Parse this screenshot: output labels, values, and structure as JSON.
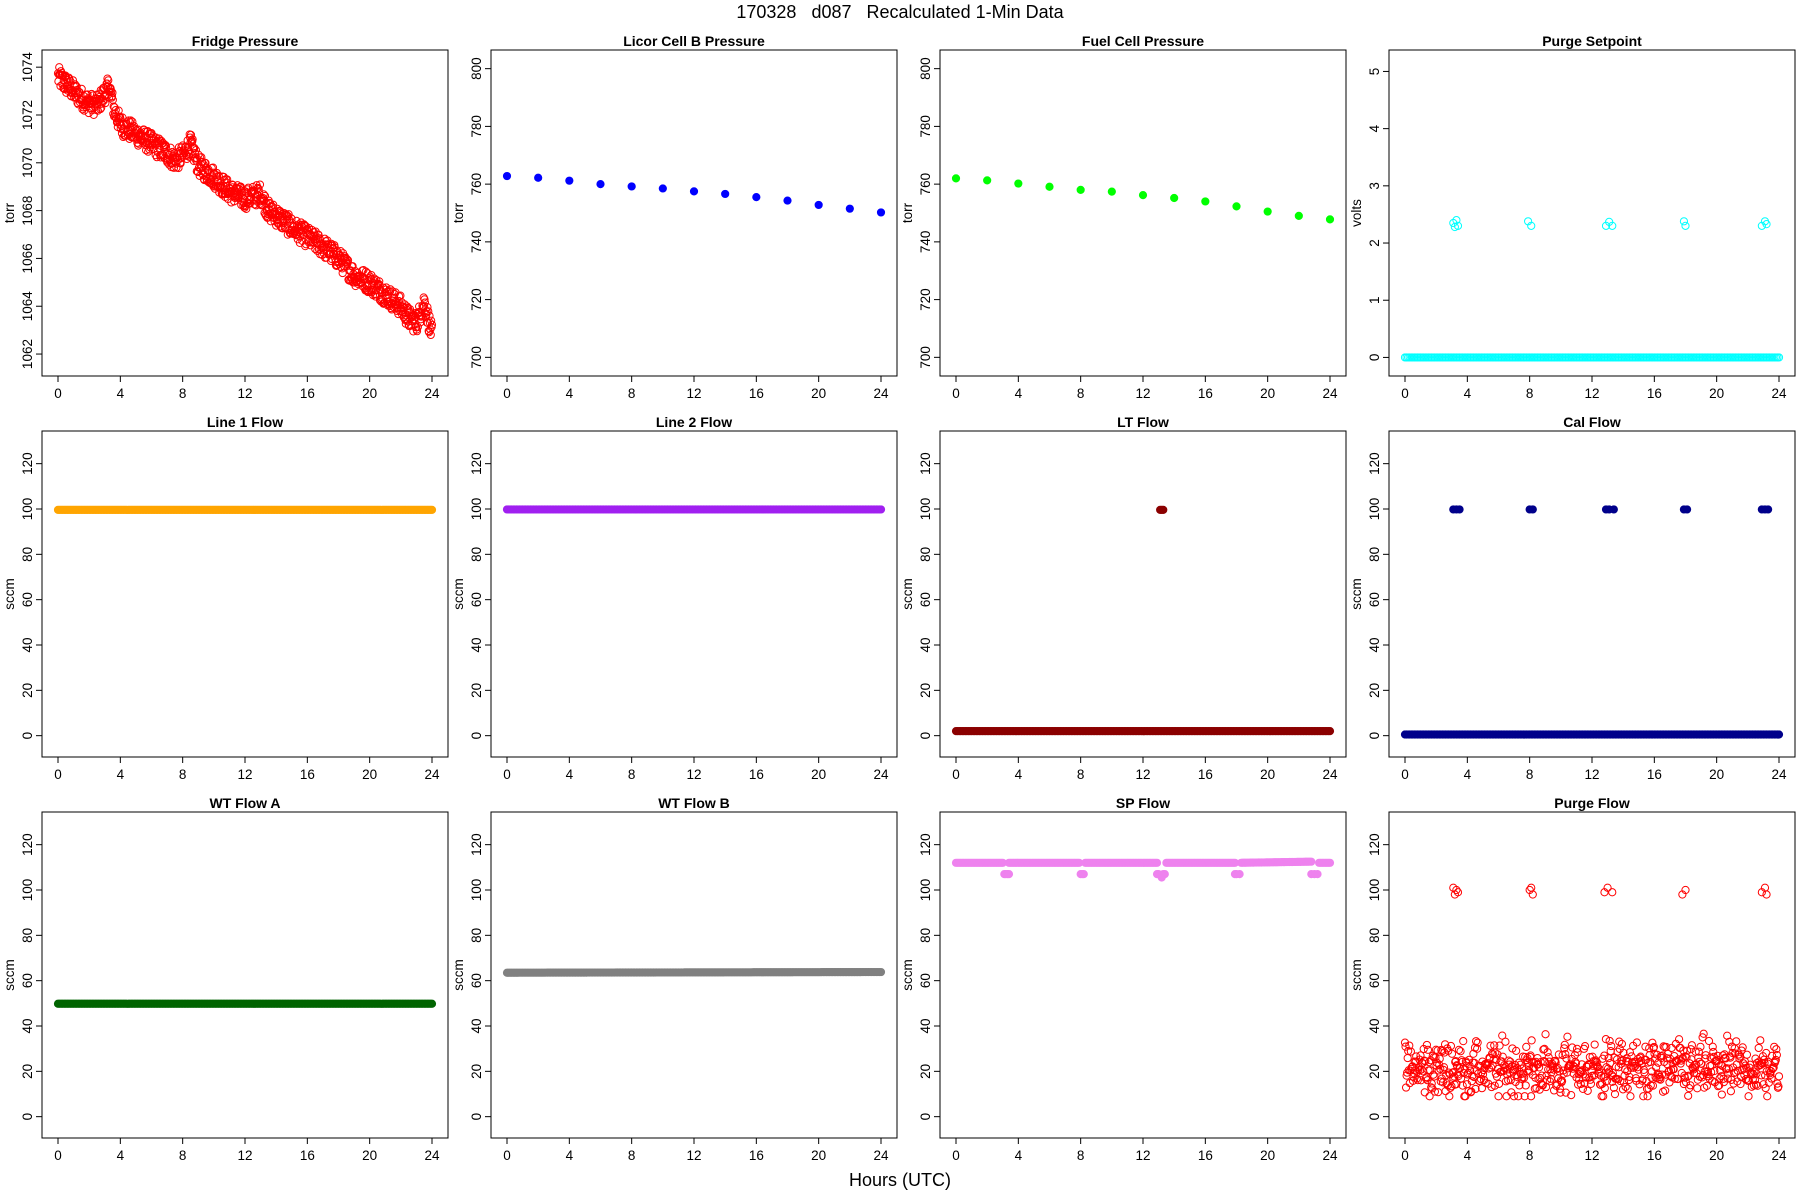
{
  "header": {
    "date": "170328",
    "doy": "d087",
    "title": "Recalculated 1-Min Data"
  },
  "xlabel": "Hours (UTC)",
  "chart_data": [
    {
      "type": "scatter",
      "title": "Fridge Pressure",
      "xlabel": "",
      "ylabel": "torr",
      "xlim": [
        0,
        24
      ],
      "ylim": [
        1061.5,
        1074.3
      ],
      "xticks": [
        0,
        4,
        8,
        12,
        16,
        20,
        24
      ],
      "yticks": [
        1062,
        1064,
        1066,
        1068,
        1070,
        1072,
        1074
      ],
      "ytick_rotated": true,
      "marker": "open-circle",
      "color": "#ff0000",
      "series": [
        {
          "x": [
            0,
            0.5,
            1,
            1.5,
            2,
            2.5,
            3,
            3.3,
            3.6,
            4,
            5,
            6,
            7,
            7.5,
            8,
            8.5,
            9,
            10,
            11,
            12,
            13,
            13.5,
            14,
            15,
            16,
            17,
            18,
            19,
            20,
            21,
            22,
            22.5,
            23,
            23.5,
            24
          ],
          "y": [
            1073.6,
            1073.3,
            1073.0,
            1072.7,
            1072.5,
            1072.4,
            1072.9,
            1073.2,
            1072.2,
            1071.6,
            1071.2,
            1070.8,
            1070.4,
            1070.1,
            1070.3,
            1070.8,
            1069.9,
            1069.4,
            1068.8,
            1068.5,
            1068.7,
            1068.0,
            1067.8,
            1067.3,
            1066.9,
            1066.5,
            1066.0,
            1065.3,
            1065.0,
            1064.5,
            1064.0,
            1063.5,
            1063.3,
            1064.2,
            1062.8
          ]
        }
      ]
    },
    {
      "type": "scatter",
      "title": "Licor Cell B Pressure",
      "xlabel": "",
      "ylabel": "torr",
      "xlim": [
        0,
        24
      ],
      "ylim": [
        697,
        803
      ],
      "xticks": [
        0,
        4,
        8,
        12,
        16,
        20,
        24
      ],
      "yticks": [
        700,
        720,
        740,
        760,
        780,
        800
      ],
      "ytick_rotated": true,
      "marker": "filled-circle",
      "color": "#0000ff",
      "series": [
        {
          "x": [
            0,
            2,
            4,
            6,
            8,
            10,
            12,
            14,
            16,
            18,
            20,
            22,
            24
          ],
          "y": [
            762.8,
            762.2,
            761.2,
            760.0,
            759.2,
            758.5,
            757.5,
            756.6,
            755.5,
            754.3,
            752.8,
            751.5,
            750.2
          ]
        }
      ]
    },
    {
      "type": "scatter",
      "title": "Fuel Cell Pressure",
      "xlabel": "",
      "ylabel": "torr",
      "xlim": [
        0,
        24
      ],
      "ylim": [
        697,
        803
      ],
      "xticks": [
        0,
        4,
        8,
        12,
        16,
        20,
        24
      ],
      "yticks": [
        700,
        720,
        740,
        760,
        780,
        800
      ],
      "ytick_rotated": true,
      "marker": "filled-circle",
      "color": "#00ff00",
      "series": [
        {
          "x": [
            0,
            2,
            4,
            6,
            8,
            10,
            12,
            14,
            16,
            18,
            20,
            22,
            24
          ],
          "y": [
            762.0,
            761.3,
            760.2,
            759.1,
            758.0,
            757.4,
            756.2,
            755.2,
            754.0,
            752.3,
            750.5,
            749.0,
            747.8
          ]
        }
      ]
    },
    {
      "type": "scatter",
      "title": "Purge Setpoint",
      "xlabel": "",
      "ylabel": "volts",
      "xlim": [
        0,
        24
      ],
      "ylim": [
        -0.15,
        5.2
      ],
      "xticks": [
        0,
        4,
        8,
        12,
        16,
        20,
        24
      ],
      "yticks": [
        0,
        1,
        2,
        3,
        4,
        5
      ],
      "ytick_rotated": true,
      "marker": "open-circle",
      "color": "#00ffff",
      "series": [
        {
          "x": [
            0,
            24
          ],
          "y": [
            0,
            0
          ],
          "style": "band"
        },
        {
          "x": [
            3.1,
            3.2,
            3.3,
            3.4,
            7.9,
            8.1,
            12.9,
            13.1,
            13.3,
            17.9,
            18.0,
            22.9,
            23.1,
            23.2
          ],
          "y": [
            2.35,
            2.28,
            2.4,
            2.3,
            2.38,
            2.3,
            2.3,
            2.37,
            2.3,
            2.38,
            2.3,
            2.3,
            2.38,
            2.33
          ]
        }
      ]
    },
    {
      "type": "scatter",
      "title": "Line 1 Flow",
      "xlabel": "",
      "ylabel": "sccm",
      "xlim": [
        0,
        24
      ],
      "ylim": [
        -5,
        130
      ],
      "xticks": [
        0,
        4,
        8,
        12,
        16,
        20,
        24
      ],
      "yticks": [
        0,
        20,
        40,
        60,
        80,
        100,
        120
      ],
      "ytick_rotated": true,
      "marker": "filled-circle",
      "color": "#ffa500",
      "series": [
        {
          "x": [
            0,
            24
          ],
          "y": [
            99.6,
            99.6
          ],
          "style": "band"
        }
      ]
    },
    {
      "type": "scatter",
      "title": "Line 2 Flow",
      "xlabel": "",
      "ylabel": "sccm",
      "xlim": [
        0,
        24
      ],
      "ylim": [
        -5,
        130
      ],
      "xticks": [
        0,
        4,
        8,
        12,
        16,
        20,
        24
      ],
      "yticks": [
        0,
        20,
        40,
        60,
        80,
        100,
        120
      ],
      "ytick_rotated": true,
      "marker": "filled-circle",
      "color": "#a020f0",
      "series": [
        {
          "x": [
            0,
            24
          ],
          "y": [
            99.8,
            99.8
          ],
          "style": "band"
        }
      ]
    },
    {
      "type": "scatter",
      "title": "LT Flow",
      "xlabel": "",
      "ylabel": "sccm",
      "xlim": [
        0,
        24
      ],
      "ylim": [
        -5,
        130
      ],
      "xticks": [
        0,
        4,
        8,
        12,
        16,
        20,
        24
      ],
      "yticks": [
        0,
        20,
        40,
        60,
        80,
        100,
        120
      ],
      "ytick_rotated": true,
      "marker": "filled-circle",
      "color": "#8b0000",
      "series": [
        {
          "x": [
            0,
            24
          ],
          "y": [
            2,
            2
          ],
          "style": "band"
        },
        {
          "x": [
            13.1,
            13.2,
            13.3
          ],
          "y": [
            99.6,
            99.6,
            99.6
          ]
        }
      ]
    },
    {
      "type": "scatter",
      "title": "Cal Flow",
      "xlabel": "",
      "ylabel": "sccm",
      "xlim": [
        0,
        24
      ],
      "ylim": [
        -5,
        130
      ],
      "xticks": [
        0,
        4,
        8,
        12,
        16,
        20,
        24
      ],
      "yticks": [
        0,
        20,
        40,
        60,
        80,
        100,
        120
      ],
      "ytick_rotated": true,
      "marker": "filled-circle",
      "color": "#00008b",
      "series": [
        {
          "x": [
            0,
            24
          ],
          "y": [
            0.5,
            0.5
          ],
          "style": "band"
        },
        {
          "x": [
            3.1,
            3.3,
            3.5,
            8.0,
            8.2,
            12.9,
            13.1,
            13.4,
            17.9,
            18.1,
            22.9,
            23.1,
            23.3
          ],
          "y": [
            99.8,
            99.8,
            99.8,
            99.8,
            99.8,
            99.8,
            99.8,
            99.8,
            99.8,
            99.8,
            99.8,
            99.8,
            99.8
          ]
        }
      ]
    },
    {
      "type": "scatter",
      "title": "WT Flow A",
      "xlabel": "",
      "ylabel": "sccm",
      "xlim": [
        0,
        24
      ],
      "ylim": [
        -5,
        130
      ],
      "xticks": [
        0,
        4,
        8,
        12,
        16,
        20,
        24
      ],
      "yticks": [
        0,
        20,
        40,
        60,
        80,
        100,
        120
      ],
      "ytick_rotated": true,
      "marker": "filled-circle",
      "color": "#006400",
      "series": [
        {
          "x": [
            0,
            24
          ],
          "y": [
            49.8,
            49.8
          ],
          "style": "band"
        }
      ]
    },
    {
      "type": "scatter",
      "title": "WT Flow B",
      "xlabel": "",
      "ylabel": "sccm",
      "xlim": [
        0,
        24
      ],
      "ylim": [
        -5,
        130
      ],
      "xticks": [
        0,
        4,
        8,
        12,
        16,
        20,
        24
      ],
      "yticks": [
        0,
        20,
        40,
        60,
        80,
        100,
        120
      ],
      "ytick_rotated": true,
      "marker": "filled-circle",
      "color": "#808080",
      "series": [
        {
          "x": [
            0,
            24
          ],
          "y": [
            63.5,
            63.8
          ],
          "style": "band"
        }
      ]
    },
    {
      "type": "scatter",
      "title": "SP Flow",
      "xlabel": "",
      "ylabel": "sccm",
      "xlim": [
        0,
        24
      ],
      "ylim": [
        -5,
        130
      ],
      "xticks": [
        0,
        4,
        8,
        12,
        16,
        20,
        24
      ],
      "yticks": [
        0,
        20,
        40,
        60,
        80,
        100,
        120
      ],
      "ytick_rotated": true,
      "marker": "filled-circle",
      "color": "#ee82ee",
      "series": [
        {
          "x": [
            0,
            3.0,
            3.4,
            7.9,
            8.3,
            12.9,
            13.5,
            17.9,
            18.3,
            22.8,
            23.3,
            24
          ],
          "y": [
            112.0,
            112.0,
            112.0,
            112.0,
            112.0,
            112.0,
            112.0,
            112.0,
            112.0,
            112.5,
            112.0,
            112.0
          ],
          "style": "band-gapped",
          "gaps": [
            [
              3.0,
              3.4
            ],
            [
              7.9,
              8.3
            ],
            [
              12.9,
              13.5
            ],
            [
              17.9,
              18.3
            ],
            [
              22.8,
              23.3
            ]
          ]
        },
        {
          "x": [
            3.1,
            3.2,
            3.3,
            3.4,
            8.0,
            8.1,
            8.2,
            12.9,
            13.0,
            13.3,
            13.4,
            13.2,
            17.9,
            18.0,
            18.2,
            22.8,
            23.0,
            23.2
          ],
          "y": [
            107.0,
            107.0,
            107.0,
            107.0,
            107.0,
            107.0,
            107.0,
            107.0,
            107.0,
            107.0,
            107.0,
            105.5,
            107.0,
            107.0,
            107.0,
            107.0,
            107.0,
            107.0
          ]
        }
      ]
    },
    {
      "type": "scatter",
      "title": "Purge Flow",
      "xlabel": "",
      "ylabel": "sccm",
      "xlim": [
        0,
        24
      ],
      "ylim": [
        -5,
        130
      ],
      "xticks": [
        0,
        4,
        8,
        12,
        16,
        20,
        24
      ],
      "yticks": [
        0,
        20,
        40,
        60,
        80,
        100,
        120
      ],
      "ytick_rotated": true,
      "marker": "open-circle",
      "color": "#ff0000",
      "series": [
        {
          "x": [
            0,
            24
          ],
          "y": [
            21,
            21
          ],
          "style": "noisy",
          "spread": [
            9,
            38
          ]
        },
        {
          "x": [
            3.1,
            3.2,
            3.3,
            3.4,
            8.0,
            8.1,
            8.2,
            12.8,
            13.0,
            13.3,
            17.8,
            18.0,
            22.9,
            23.1,
            23.2
          ],
          "y": [
            101,
            98,
            100,
            99,
            100,
            101,
            98,
            99,
            101,
            99,
            98,
            100,
            99,
            101,
            98
          ]
        }
      ]
    }
  ]
}
